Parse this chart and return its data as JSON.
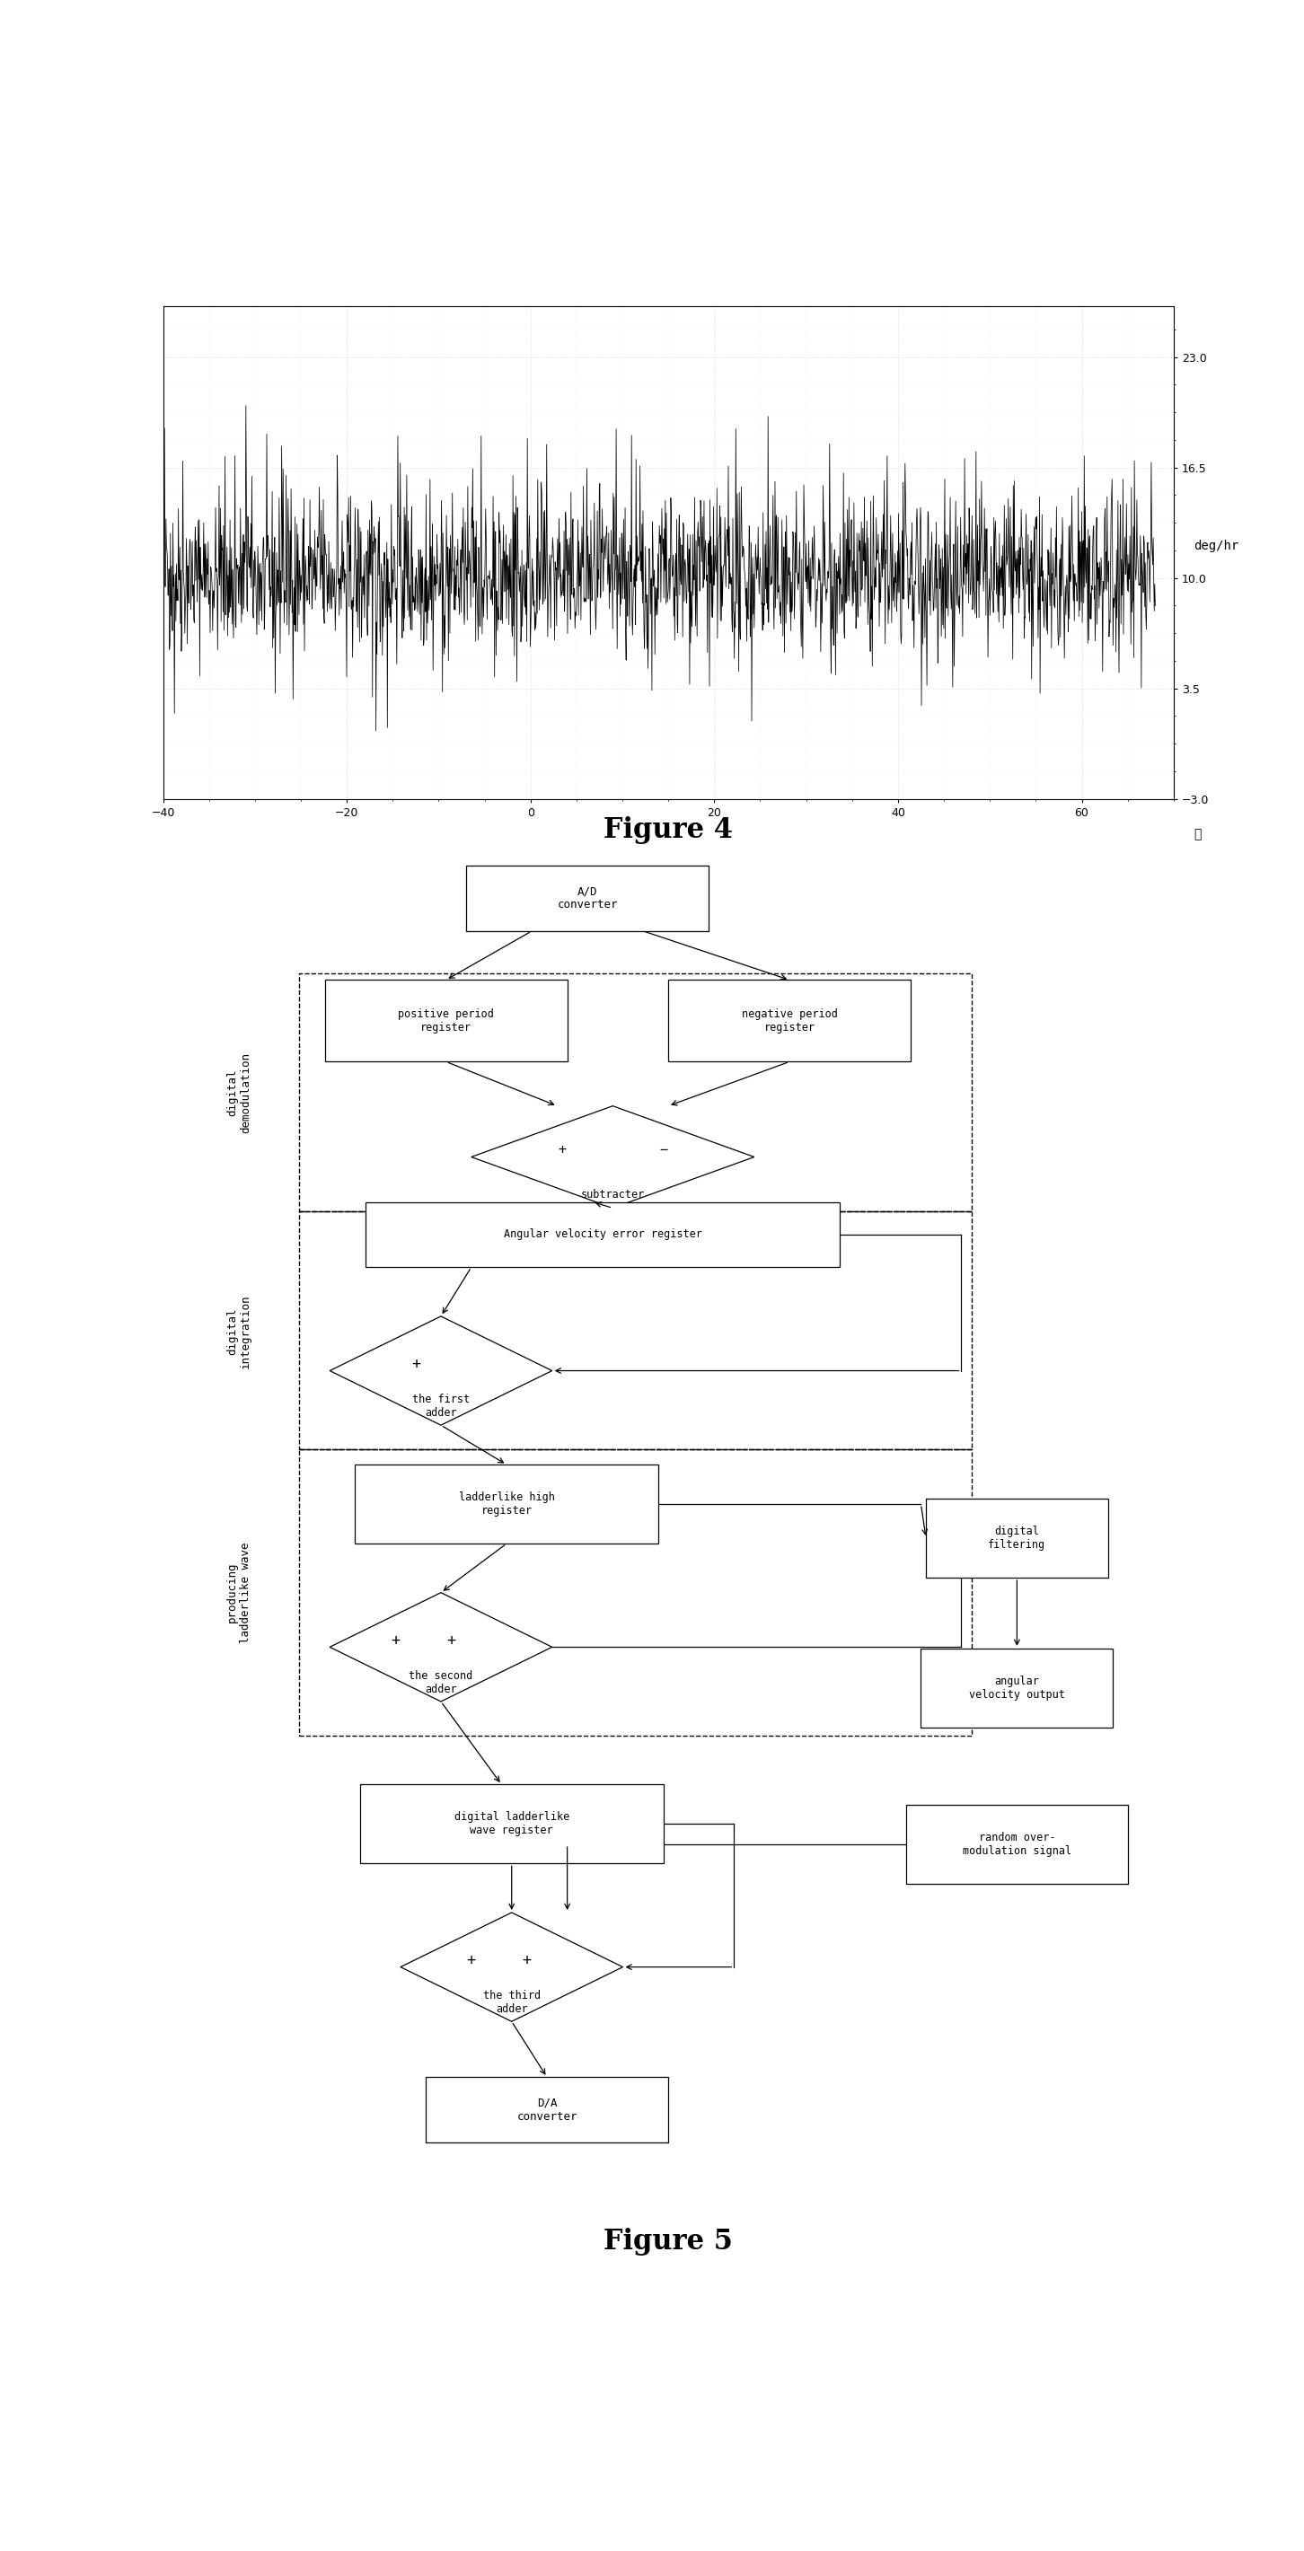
{
  "fig4": {
    "title": "Figure 4",
    "xlabel": "℃",
    "ylabel": "deg/hr",
    "xlim": [
      -40,
      70
    ],
    "ylim": [
      -3.0,
      26.0
    ],
    "yticks": [
      -3.0,
      3.5,
      10.0,
      16.5,
      23.0
    ],
    "xticks": [
      -40,
      -20,
      0,
      20,
      40,
      60
    ],
    "noise_mean": 10.0,
    "noise_std": 2.2,
    "noise_seed": 42,
    "n_points": 2000,
    "bg_color": "#ffffff",
    "grid_color": "#bbbbbb",
    "signal_color": "#000000"
  },
  "fig5": {
    "title": "Figure 5"
  }
}
